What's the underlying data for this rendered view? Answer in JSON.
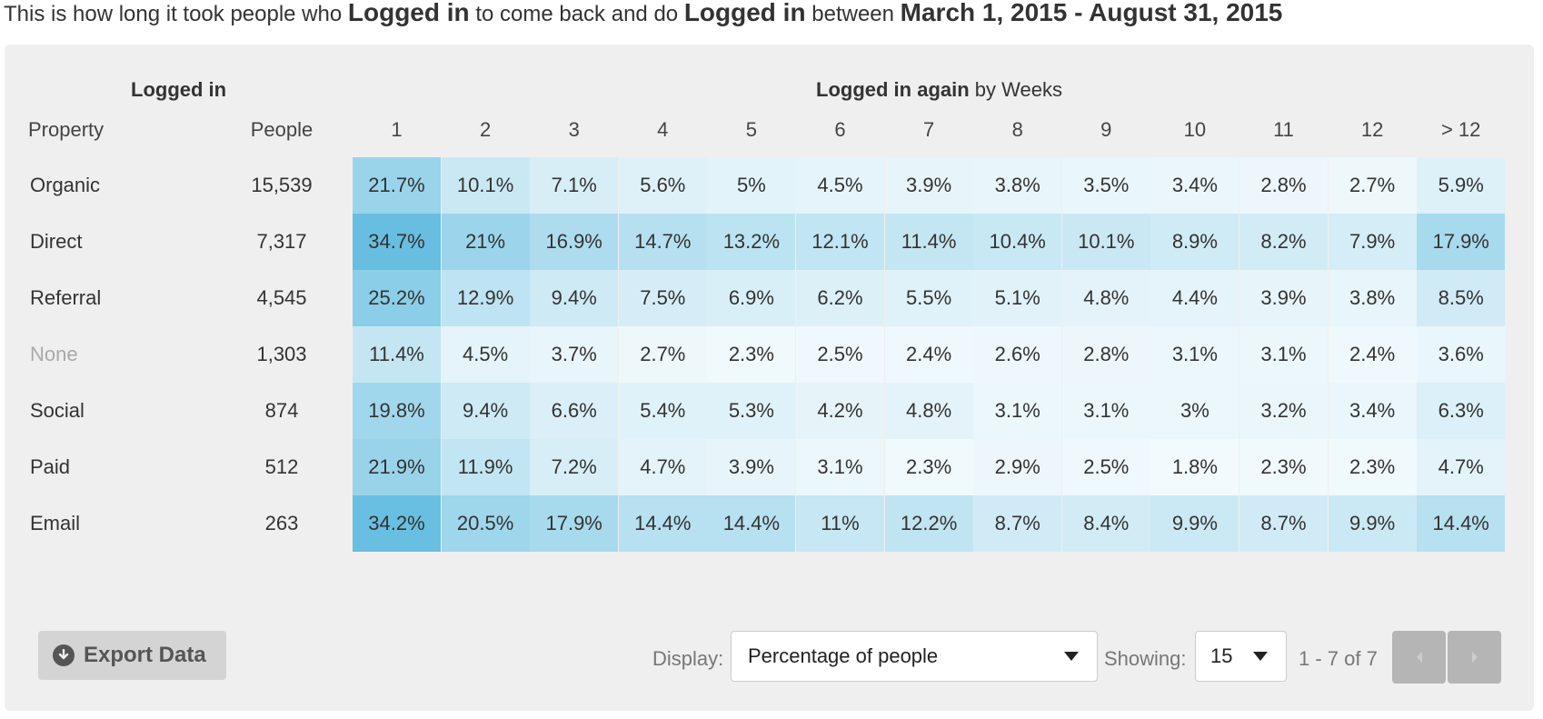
{
  "headline": {
    "p1": "This is how long it took people who ",
    "e1": "Logged in",
    "p2": " to come back and do ",
    "e2": "Logged in",
    "p3": " between ",
    "range": "March 1, 2015 - August 31, 2015"
  },
  "table": {
    "left_group": "Logged in",
    "right_group_bold": "Logged in again",
    "right_group_suffix": " by Weeks",
    "col_property": "Property",
    "col_people": "People",
    "weeks": [
      "1",
      "2",
      "3",
      "4",
      "5",
      "6",
      "7",
      "8",
      "9",
      "10",
      "11",
      "12",
      "> 12"
    ],
    "rows": [
      {
        "label": "Organic",
        "muted": false,
        "people": "15,539",
        "values": [
          "21.7%",
          "10.1%",
          "7.1%",
          "5.6%",
          "5%",
          "4.5%",
          "3.9%",
          "3.8%",
          "3.5%",
          "3.4%",
          "2.8%",
          "2.7%",
          "5.9%"
        ]
      },
      {
        "label": "Direct",
        "muted": false,
        "people": "7,317",
        "values": [
          "34.7%",
          "21%",
          "16.9%",
          "14.7%",
          "13.2%",
          "12.1%",
          "11.4%",
          "10.4%",
          "10.1%",
          "8.9%",
          "8.2%",
          "7.9%",
          "17.9%"
        ]
      },
      {
        "label": "Referral",
        "muted": false,
        "people": "4,545",
        "values": [
          "25.2%",
          "12.9%",
          "9.4%",
          "7.5%",
          "6.9%",
          "6.2%",
          "5.5%",
          "5.1%",
          "4.8%",
          "4.4%",
          "3.9%",
          "3.8%",
          "8.5%"
        ]
      },
      {
        "label": "None",
        "muted": true,
        "people": "1,303",
        "values": [
          "11.4%",
          "4.5%",
          "3.7%",
          "2.7%",
          "2.3%",
          "2.5%",
          "2.4%",
          "2.6%",
          "2.8%",
          "3.1%",
          "3.1%",
          "2.4%",
          "3.6%"
        ]
      },
      {
        "label": "Social",
        "muted": false,
        "people": "874",
        "values": [
          "19.8%",
          "9.4%",
          "6.6%",
          "5.4%",
          "5.3%",
          "4.2%",
          "4.8%",
          "3.1%",
          "3.1%",
          "3%",
          "3.2%",
          "3.4%",
          "6.3%"
        ]
      },
      {
        "label": "Paid",
        "muted": false,
        "people": "512",
        "values": [
          "21.9%",
          "11.9%",
          "7.2%",
          "4.7%",
          "3.9%",
          "3.1%",
          "2.3%",
          "2.9%",
          "2.5%",
          "1.8%",
          "2.3%",
          "2.3%",
          "4.7%"
        ]
      },
      {
        "label": "Email",
        "muted": false,
        "people": "263",
        "values": [
          "34.2%",
          "20.5%",
          "17.9%",
          "14.4%",
          "14.4%",
          "11%",
          "12.2%",
          "8.7%",
          "8.4%",
          "9.9%",
          "8.7%",
          "9.9%",
          "14.4%"
        ]
      }
    ]
  },
  "controls": {
    "export_label": "Export Data",
    "display_label": "Display:",
    "display_value": "Percentage of people",
    "showing_label": "Showing:",
    "showing_value": "15",
    "range_text": "1 - 7 of 7"
  },
  "colors": {
    "heat_low": "#ffffff",
    "heat_high": "#66bee0",
    "panel_bg": "#efefef",
    "pager_bg": "#b5b5b5"
  }
}
